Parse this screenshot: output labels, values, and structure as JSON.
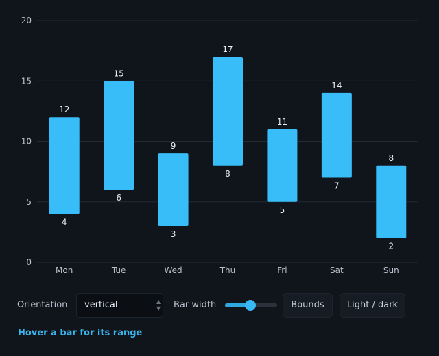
{
  "chart_data": {
    "type": "bar",
    "subtype": "floating-range",
    "orientation": "vertical",
    "categories": [
      "Mon",
      "Tue",
      "Wed",
      "Thu",
      "Fri",
      "Sat",
      "Sun"
    ],
    "ranges": [
      [
        4,
        12
      ],
      [
        6,
        15
      ],
      [
        3,
        9
      ],
      [
        8,
        17
      ],
      [
        5,
        11
      ],
      [
        7,
        14
      ],
      [
        2,
        8
      ]
    ],
    "ylim": [
      0,
      20
    ],
    "yticks": [
      0,
      5,
      10,
      15,
      20
    ],
    "grid": true,
    "title": "",
    "xlabel": "",
    "ylabel": "",
    "bar_color": "#38bdf8"
  },
  "controls": {
    "orientation_label": "Orientation",
    "orientation_value": "vertical",
    "bar_width_label": "Bar width",
    "bar_width_fraction": 0.49,
    "bounds_label": "Bounds",
    "theme_label": "Light / dark"
  },
  "status": {
    "hint": "Hover a bar for its range"
  },
  "colors": {
    "background": "#10151c",
    "bar": "#38bdf8",
    "accent": "#3bb4ec",
    "grid": "#222a33"
  },
  "icons": {
    "select_caret": "chevron-updown-icon"
  }
}
